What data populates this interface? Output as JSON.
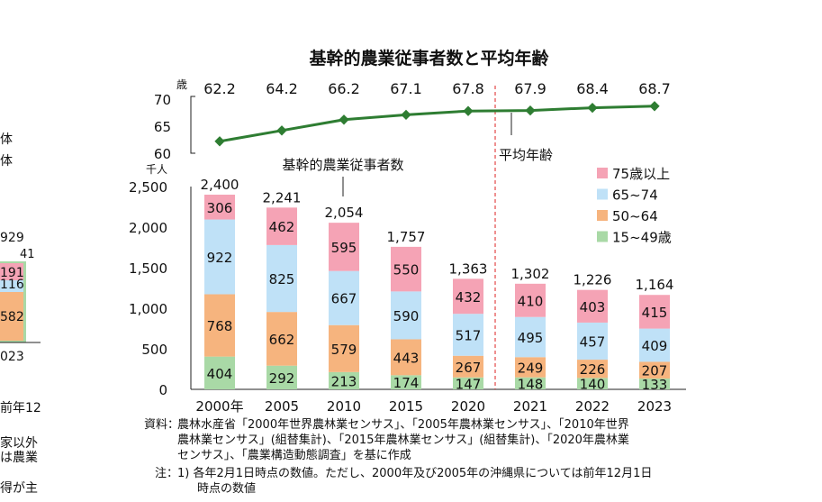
{
  "chart_data": [
    {
      "type": "line",
      "title": "基幹的農業従事者数と平均年齢",
      "ylabel": "歳",
      "ylim": [
        60,
        70
      ],
      "yticks": [
        60,
        65,
        70
      ],
      "categories": [
        "2000年",
        "2005",
        "2010",
        "2015",
        "2020",
        "2021",
        "2022",
        "2023"
      ],
      "series": [
        {
          "name": "平均年齢",
          "values": [
            62.2,
            64.2,
            66.2,
            67.1,
            67.8,
            67.9,
            68.4,
            68.7
          ],
          "color": "#2e7d32"
        }
      ]
    },
    {
      "type": "bar",
      "stacked": true,
      "ylabel": "千人",
      "ylim": [
        0,
        2500
      ],
      "yticks": [
        "0",
        "500",
        "1,000",
        "1,500",
        "2,000",
        "2,500"
      ],
      "categories": [
        "2000年",
        "2005",
        "2010",
        "2015",
        "2020",
        "2021",
        "2022",
        "2023"
      ],
      "annotation": "基幹的農業従事者数",
      "totals": [
        "2,400",
        "2,241",
        "2,054",
        "1,757",
        "1,363",
        "1,302",
        "1,226",
        "1,164"
      ],
      "series": [
        {
          "name": "15~49歳",
          "values": [
            404,
            292,
            213,
            174,
            147,
            148,
            140,
            133
          ],
          "color": "#a9d9a6"
        },
        {
          "name": "50~64",
          "values": [
            768,
            662,
            579,
            443,
            267,
            249,
            226,
            207
          ],
          "color": "#f6b47e"
        },
        {
          "name": "65~74",
          "values": [
            922,
            825,
            667,
            590,
            517,
            495,
            457,
            409
          ],
          "color": "#bfe1f7"
        },
        {
          "name": "75歳以上",
          "values": [
            306,
            462,
            595,
            550,
            432,
            410,
            403,
            415
          ],
          "color": "#f5a3b5"
        }
      ],
      "legend": "top-right"
    }
  ],
  "left_fragment": {
    "texts": [
      "体",
      "体",
      "929",
      "41",
      "023",
      "前年12",
      "家以外",
      "は農業",
      "得が主"
    ],
    "bar": [
      "191",
      "116",
      "582"
    ]
  },
  "notes": {
    "source_label": "資料：",
    "source_lines": [
      "農林水産省「2000年世界農林業センサス」、「2005年農林業センサス」、「2010年世界",
      "農林業センサス」(組替集計)、「2015年農林業センサス」(組替集計)、「2020年農林業",
      "センサス」、「農業構造動態調査」を基に作成"
    ],
    "note_label": "注：",
    "note_lines": [
      "1) 各年2月1日時点の数値。ただし、2000年及び2005年の沖縄県については前年12月1日",
      "時点の数値"
    ]
  }
}
